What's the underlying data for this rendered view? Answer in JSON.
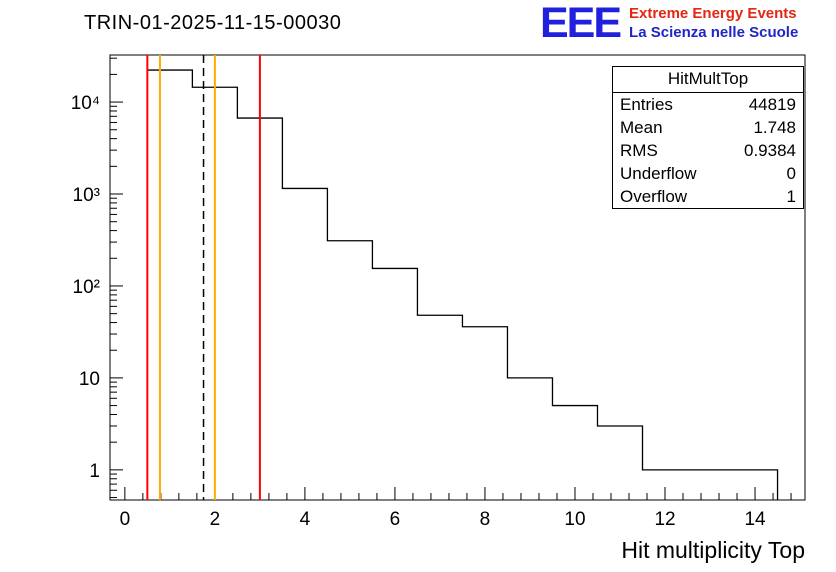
{
  "title": "TRIN-01-2025-11-15-00030",
  "logo": {
    "acronym": "EEE",
    "line1": "Extreme Energy Events",
    "line2": "La Scienza nelle Scuole",
    "acronym_color": "#2020dd",
    "line1_color": "#e42613",
    "line2_color": "#2025c8"
  },
  "stats": {
    "title": "HitMultTop",
    "rows": [
      {
        "label": "Entries",
        "value": "44819"
      },
      {
        "label": "Mean",
        "value": "1.748"
      },
      {
        "label": "RMS",
        "value": "0.9384"
      },
      {
        "label": "Underflow",
        "value": "0"
      },
      {
        "label": "Overflow",
        "value": "1"
      }
    ]
  },
  "chart_data": {
    "type": "bar",
    "style": "step-histogram",
    "title": "TRIN-01-2025-11-15-00030",
    "xlabel": "Hit multiplicity Top",
    "ylabel": "",
    "yscale": "log",
    "grid": false,
    "legend": "none",
    "x_bin_centers": [
      1,
      2,
      3,
      4,
      5,
      6,
      7,
      8,
      9,
      10,
      11,
      12,
      13,
      14
    ],
    "values": [
      22300,
      14500,
      6700,
      1150,
      310,
      155,
      48,
      36,
      10,
      5,
      3,
      1,
      1,
      1
    ],
    "bin_width": 1,
    "xlim": [
      -0.33,
      15.11
    ],
    "ylim": [
      0.47,
      32500
    ],
    "x_major_ticks": [
      0,
      2,
      4,
      6,
      8,
      10,
      12,
      14
    ],
    "x_minor_step": 0.4,
    "y_major_ticks": [
      1,
      10,
      100,
      1000,
      10000
    ],
    "y_major_labels": [
      "1",
      "10",
      "10²",
      "10³",
      "10⁴"
    ],
    "line_color": "#000000",
    "markers": [
      {
        "x": 0.5,
        "color": "#ff0000",
        "style": "solid",
        "name": "red-marker-low"
      },
      {
        "x": 0.78,
        "color": "#ffaa00",
        "style": "solid",
        "name": "orange-marker-low"
      },
      {
        "x": 1.748,
        "color": "#000000",
        "style": "dashed",
        "name": "mean-marker"
      },
      {
        "x": 2.0,
        "color": "#ffaa00",
        "style": "solid",
        "name": "orange-marker-high"
      },
      {
        "x": 3.0,
        "color": "#ff0000",
        "style": "solid",
        "name": "red-marker-high"
      }
    ]
  }
}
